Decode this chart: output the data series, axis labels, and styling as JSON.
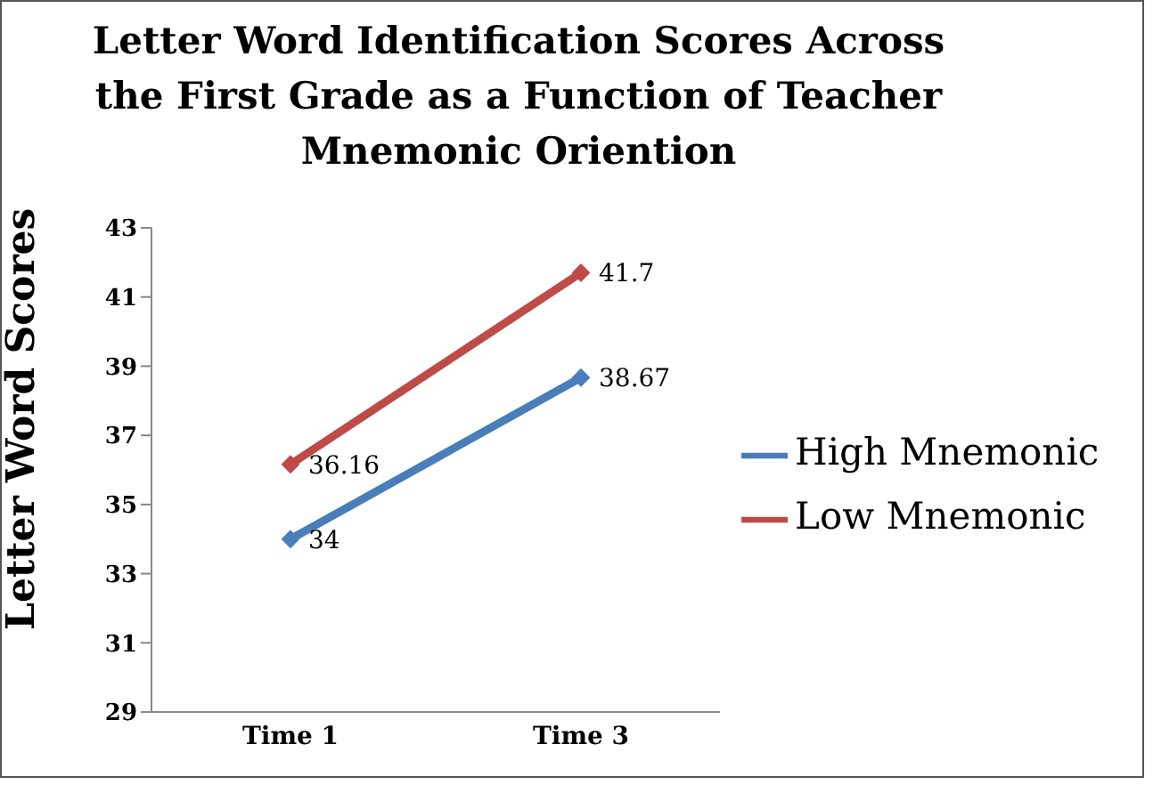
{
  "chart_data": {
    "type": "line",
    "title": "Letter Word Identification Scores Across the First Grade as a Function of Teacher Mnemonic Oriention",
    "ylabel": "Letter Word Scores",
    "categories": [
      "Time 1",
      "Time 3"
    ],
    "series": [
      {
        "name": "High Mnemonic",
        "color": "#4a7ebb",
        "values": [
          34,
          38.67
        ]
      },
      {
        "name": "Low Mnemonic",
        "color": "#be4b48",
        "values": [
          36.16,
          41.7
        ]
      }
    ],
    "ylim": [
      29,
      43
    ],
    "yticks": [
      29,
      31,
      33,
      35,
      37,
      39,
      41,
      43
    ],
    "legend": "right",
    "marker": "diamond",
    "line_style": "solid",
    "data_labels": true
  }
}
